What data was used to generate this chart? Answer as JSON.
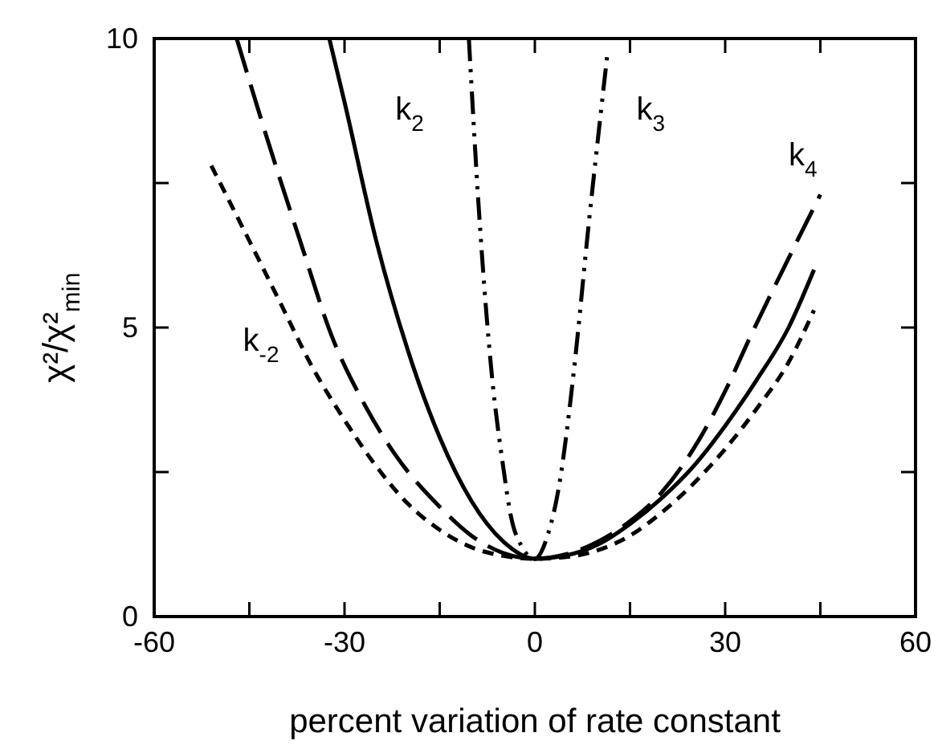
{
  "chart_data": {
    "type": "line",
    "xlabel": "percent variation of rate constant",
    "ylabel": "χ²/χ²$_{min}$",
    "xlim": [
      -60,
      60
    ],
    "xticks": [
      -60,
      {
        "value": -45,
        "label": null
      },
      -30,
      {
        "value": -15,
        "label": null
      },
      0,
      {
        "value": 15,
        "label": null
      },
      30,
      {
        "value": 45,
        "label": null
      },
      60
    ],
    "ylim": [
      0,
      10
    ],
    "yticks": [
      0,
      {
        "value": 2.5,
        "label": null
      },
      5,
      {
        "value": 7.5,
        "label": null
      },
      10
    ],
    "marker": "none",
    "series": [
      {
        "name": "k$_{2}$",
        "color": "#000000",
        "line_style": "solid",
        "x": [
          -32.4,
          -30,
          -25,
          -20,
          -15,
          -10,
          -5,
          0,
          5,
          10,
          15,
          20,
          25,
          30,
          35,
          40,
          44
        ],
        "values": [
          10,
          8.9,
          6.5,
          4.6,
          3.1,
          2.0,
          1.3,
          1,
          1.06,
          1.25,
          1.6,
          2.05,
          2.6,
          3.3,
          4.1,
          5.0,
          6.0
        ]
      },
      {
        "name": "k$_{-2}$",
        "color": "#000000",
        "line_style": "dashed",
        "x": [
          -51,
          -45,
          -40,
          -35,
          -30,
          -25,
          -20,
          -15,
          -10,
          -5,
          0,
          5,
          10,
          15,
          20,
          25,
          30,
          35,
          40,
          44
        ],
        "values": [
          7.8,
          6.5,
          5.4,
          4.3,
          3.4,
          2.6,
          1.95,
          1.5,
          1.2,
          1.05,
          1,
          1.03,
          1.15,
          1.4,
          1.8,
          2.3,
          2.9,
          3.6,
          4.4,
          5.3
        ]
      },
      {
        "name": "k$_{3}$",
        "color": "#000000",
        "line_style": "dashdotdot",
        "x": [
          -10.4,
          -8.8,
          -6.8,
          -5,
          -3.8,
          -2,
          0,
          2,
          3.8,
          6.1,
          8.5,
          11.4
        ],
        "values": [
          10,
          7,
          4.2,
          2.6,
          1.75,
          1.2,
          1,
          1.4,
          2.25,
          4.2,
          6.8,
          9.7
        ]
      },
      {
        "name": "k$_{4}$",
        "color": "#000000",
        "line_style": "longdash",
        "x": [
          -47,
          -42,
          -37,
          -32,
          -27,
          -22,
          -15,
          -10,
          -5,
          0,
          5,
          10,
          15,
          20,
          25,
          30,
          34,
          40,
          45
        ],
        "values": [
          10,
          8.2,
          6.5,
          4.85,
          3.7,
          2.8,
          1.9,
          1.4,
          1.1,
          1,
          1.08,
          1.3,
          1.65,
          2.15,
          2.9,
          3.9,
          4.85,
          6.2,
          7.3
        ]
      }
    ]
  }
}
